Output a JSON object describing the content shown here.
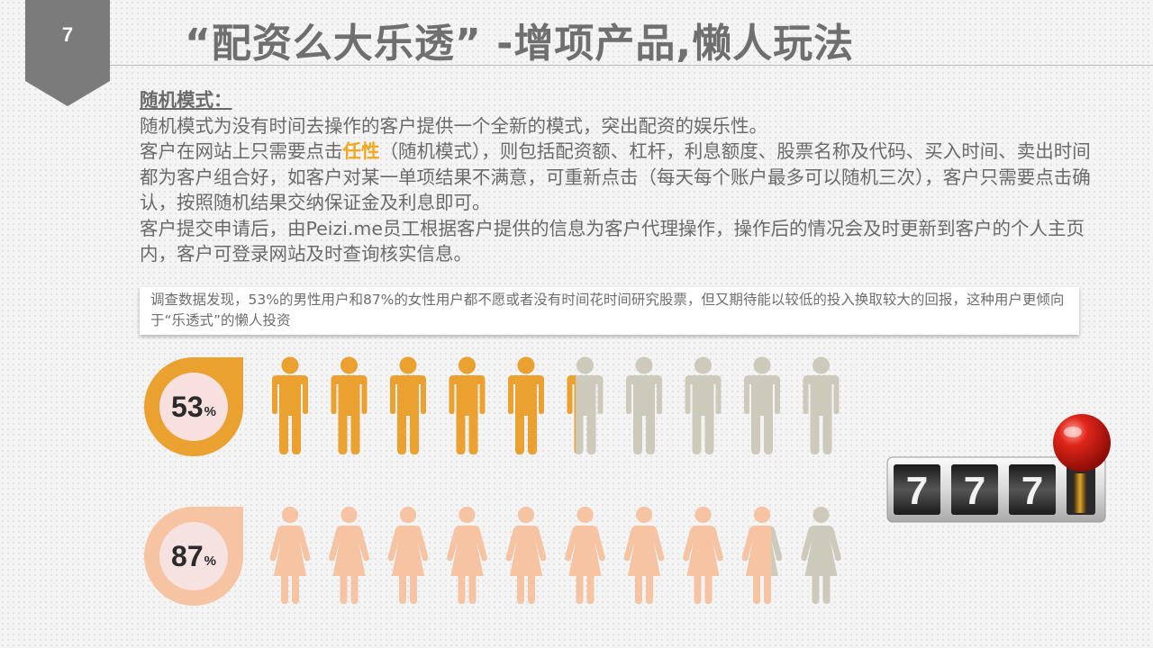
{
  "page_number": "7",
  "title": "“配资么大乐透” -增项产品,懒人玩法",
  "section_heading": "随机模式：",
  "paragraphs": {
    "p1": "随机模式为没有时间去操作的客户提供一个全新的模式，突出配资的娱乐性。",
    "p2_before": "客户在网站上只需要点击",
    "p2_highlight": "任性",
    "p2_after": "（随机模式），则包括配资额、杠杆，利息额度、股票名称及代码、买入时间、卖出时间都为客户组合好，如客户对某一单项结果不满意，可重新点击（每天每个账户最多可以随机三次），客户只需要点击确认，按照随机结果交纳保证金及利息即可。",
    "p3": "客户提交申请后，由Peizi.me员工根据客户提供的信息为客户代理操作，操作后的情况会及时更新到客户的个人主页内，客户可登录网站及时查询核实信息。"
  },
  "survey_text": "调查数据发现，53%的男性用户和87%的女性用户都不愿或者没有时间花时间研究股票，但又期待能以较低的投入换取较大的回报，这种用户更倾向于“乐透式”的懒人投资",
  "stats": {
    "male": {
      "value": "53",
      "unit": "%",
      "fraction": 0.53,
      "icon": "male-person-icon",
      "color": "#eaa130",
      "inactive_color": "#cdcabc",
      "badge_inner": "#f7e0de"
    },
    "female": {
      "value": "87",
      "unit": "%",
      "fraction": 0.87,
      "icon": "female-person-icon",
      "color": "#f6c3a3",
      "inactive_color": "#cdcabc",
      "badge_inner": "#f7e2e2"
    }
  },
  "slot_machine": {
    "icon": "slot-machine-icon",
    "reels": [
      "7",
      "7",
      "7"
    ]
  },
  "colors": {
    "title": "#6f6f6f",
    "tab": "#7b7b7b",
    "highlight": "#f2a71c",
    "body_text": "#6a6a6a"
  }
}
